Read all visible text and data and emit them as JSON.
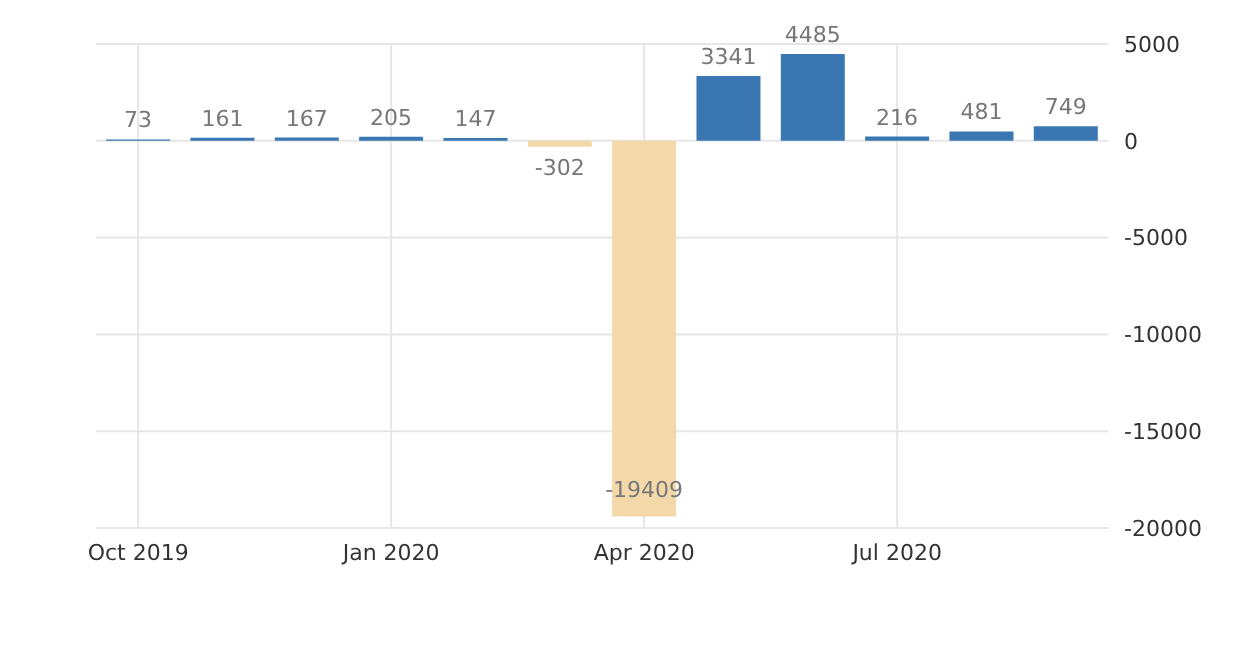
{
  "chart_data": {
    "type": "bar",
    "categories": [
      "Oct 2019",
      null,
      null,
      "Jan 2020",
      null,
      null,
      "Apr 2020",
      null,
      null,
      "Jul 2020",
      null,
      null
    ],
    "values": [
      73,
      161,
      167,
      205,
      147,
      -302,
      -19409,
      3341,
      4485,
      216,
      481,
      749
    ],
    "colors": [
      "#3a76b2",
      "#3a76b2",
      "#3a76b2",
      "#3a76b2",
      "#3a76b2",
      "#f3d9a9",
      "#f3d9a9",
      "#3a76b2",
      "#3a76b2",
      "#3a76b2",
      "#3a76b2",
      "#3a76b2"
    ],
    "ylim": [
      -20000,
      5000
    ],
    "yticks": [
      -20000,
      -15000,
      -10000,
      -5000,
      0,
      5000
    ],
    "grid": true,
    "data_labels": true
  }
}
